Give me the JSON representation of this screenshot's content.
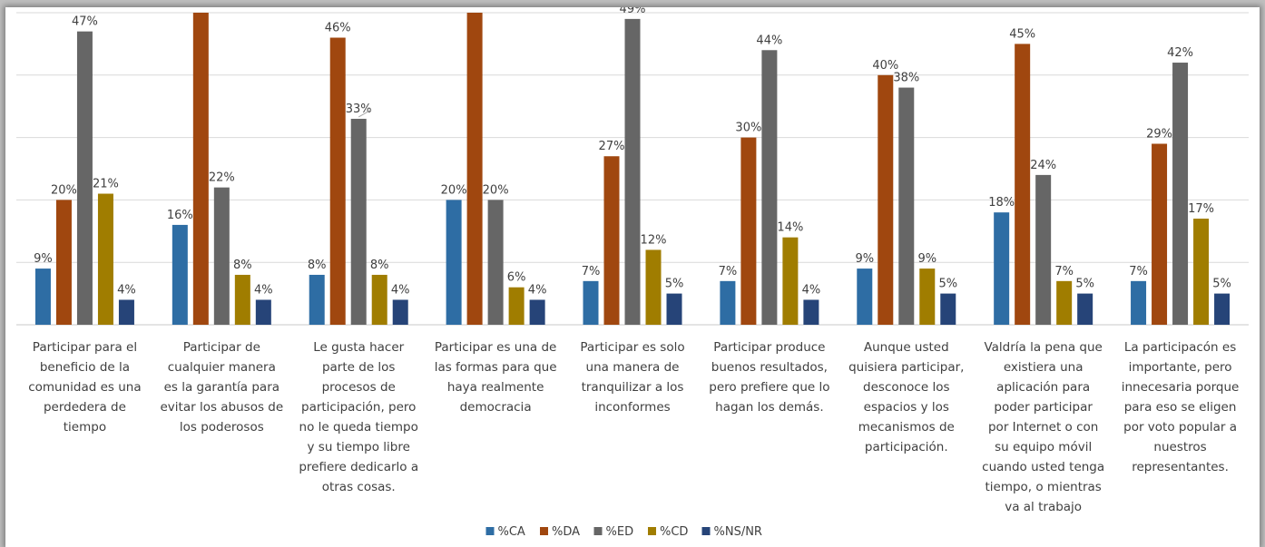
{
  "chart_data": {
    "type": "bar",
    "title": "",
    "xlabel": "",
    "ylabel": "",
    "ylim": [
      0,
      50
    ],
    "grid": true,
    "legend_position": "bottom",
    "categories": [
      "Participar para el beneficio de la comunidad es una perdedera de tiempo",
      "Participar de cualquier manera es la garantía para evitar los abusos de los poderosos",
      "Le gusta hacer parte de los procesos de participación, pero no le queda tiempo y su tiempo libre prefiere dedicarlo a otras cosas.",
      "Participar es una de las formas para que haya realmente democracia",
      "Participar es solo una manera de tranquilizar a los inconformes",
      "Participar produce buenos resultados, pero prefiere que lo hagan los demás.",
      "Aunque usted quisiera participar, desconoce los espacios y los mecanismos de participación.",
      "Valdría la pena que existiera una aplicación para poder participar por Internet o con su equipo móvil cuando usted tenga tiempo, o mientras va al trabajo",
      "La participacón es importante, pero innecesaria porque para eso se eligen por voto popular a nuestros representantes."
    ],
    "category_lines": [
      [
        "Participar para el",
        "beneficio de la",
        "comunidad es una",
        "perdedera de",
        "tiempo"
      ],
      [
        "Participar de",
        "cualquier manera",
        "es la garantía para",
        "evitar los abusos de",
        "los poderosos"
      ],
      [
        "Le gusta hacer",
        "parte de los",
        "procesos de",
        "participación, pero",
        "no le queda tiempo",
        "y su tiempo libre",
        "prefiere dedicarlo a",
        "otras cosas."
      ],
      [
        "Participar es una de",
        "las formas para que",
        "haya realmente",
        "democracia"
      ],
      [
        "Participar es solo",
        "una manera de",
        "tranquilizar a los",
        "inconformes"
      ],
      [
        "Participar produce",
        "buenos resultados,",
        "pero prefiere que lo",
        "hagan los demás."
      ],
      [
        "Aunque usted",
        "quisiera participar,",
        "desconoce los",
        "espacios y los",
        "mecanismos de",
        "participación."
      ],
      [
        "Valdría la pena que",
        "existiera una",
        "aplicación para",
        "poder participar",
        "por Internet o con",
        "su equipo móvil",
        "cuando usted tenga",
        "tiempo, o mientras",
        "va al trabajo"
      ],
      [
        "La participacón es",
        "importante, pero",
        "innecesaria porque",
        "para eso se eligen",
        "por voto popular a",
        "nuestros",
        "representantes."
      ]
    ],
    "series": [
      {
        "name": "%CA",
        "color": "#2e6da4",
        "values": [
          9,
          16,
          8,
          20,
          7,
          7,
          9,
          18,
          7
        ]
      },
      {
        "name": "%DA",
        "color": "#a0470f",
        "values": [
          20,
          50,
          46,
          50,
          27,
          30,
          40,
          45,
          29
        ]
      },
      {
        "name": "%ED",
        "color": "#666666",
        "values": [
          47,
          22,
          33,
          20,
          49,
          44,
          38,
          24,
          42
        ]
      },
      {
        "name": "%CD",
        "color": "#a07d00",
        "values": [
          21,
          8,
          8,
          6,
          12,
          14,
          9,
          7,
          17
        ]
      },
      {
        "name": "%NS/NR",
        "color": "#264478",
        "values": [
          4,
          4,
          4,
          4,
          5,
          4,
          5,
          5,
          5
        ]
      }
    ],
    "data_labels": [
      [
        "9%",
        "16%",
        "8%",
        "20%",
        "7%",
        "7%",
        "9%",
        "18%",
        "7%"
      ],
      [
        "20%",
        "50%",
        "46%",
        "50%",
        "27%",
        "30%",
        "40%",
        "45%",
        "29%"
      ],
      [
        "47%",
        "22%",
        "33%",
        "20%",
        "49%",
        "44%",
        "38%",
        "24%",
        "42%"
      ],
      [
        "21%",
        "8%",
        "8%",
        "6%",
        "12%",
        "14%",
        "9%",
        "7%",
        "17%"
      ],
      [
        "4%",
        "4%",
        "4%",
        "4%",
        "5%",
        "4%",
        "5%",
        "5%",
        "5%"
      ]
    ]
  }
}
